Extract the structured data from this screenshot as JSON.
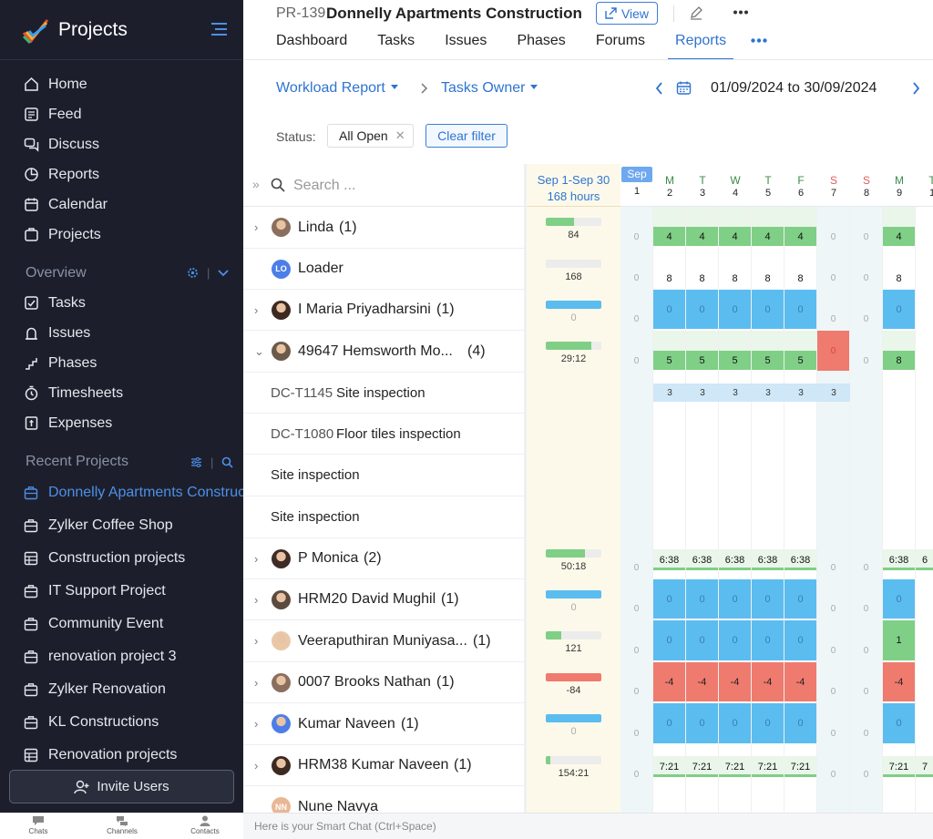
{
  "sidebar": {
    "app_title": "Projects",
    "nav": [
      {
        "label": "Home",
        "icon": "home-icon"
      },
      {
        "label": "Feed",
        "icon": "feed-icon"
      },
      {
        "label": "Discuss",
        "icon": "discuss-icon"
      },
      {
        "label": "Reports",
        "icon": "reports-icon"
      },
      {
        "label": "Calendar",
        "icon": "calendar-icon"
      },
      {
        "label": "Projects",
        "icon": "projects-icon"
      }
    ],
    "overview_label": "Overview",
    "overview": [
      {
        "label": "Tasks",
        "icon": "tasks-icon"
      },
      {
        "label": "Issues",
        "icon": "issues-icon"
      },
      {
        "label": "Phases",
        "icon": "phases-icon"
      },
      {
        "label": "Timesheets",
        "icon": "timesheets-icon"
      },
      {
        "label": "Expenses",
        "icon": "expenses-icon"
      }
    ],
    "recent_label": "Recent Projects",
    "recent": [
      {
        "label": "Donnelly Apartments Construction",
        "active": true
      },
      {
        "label": "Zylker Coffee Shop"
      },
      {
        "label": "Construction projects"
      },
      {
        "label": "IT Support Project"
      },
      {
        "label": "Community Event"
      },
      {
        "label": "renovation project 3"
      },
      {
        "label": "Zylker Renovation"
      },
      {
        "label": "KL Constructions"
      },
      {
        "label": "Renovation projects"
      }
    ],
    "invite_label": "Invite Users"
  },
  "bottom_bar": {
    "chats": "Chats",
    "channels": "Channels",
    "contacts": "Contacts",
    "smart_chat": "Here is your Smart Chat (Ctrl+Space)"
  },
  "header": {
    "project_code": "PR-139",
    "project_name": "Donnelly Apartments Construction",
    "view_label": "View",
    "tabs": [
      "Dashboard",
      "Tasks",
      "Issues",
      "Phases",
      "Forums",
      "Reports"
    ],
    "active_tab": "Reports"
  },
  "toolbar": {
    "report_type": "Workload Report",
    "group_by": "Tasks Owner",
    "date_range": "01/09/2024 to 30/09/2024",
    "status_label": "Status:",
    "status_value": "All Open",
    "clear_filter": "Clear filter"
  },
  "grid": {
    "search_placeholder": "Search ...",
    "summary_head_1": "Sep 1-Sep 30",
    "summary_head_2": "168 hours",
    "month_label": "Sep",
    "days": [
      {
        "d": "1",
        "w": ""
      },
      {
        "d": "2",
        "w": "M"
      },
      {
        "d": "3",
        "w": "T"
      },
      {
        "d": "4",
        "w": "W"
      },
      {
        "d": "5",
        "w": "T"
      },
      {
        "d": "6",
        "w": "F"
      },
      {
        "d": "7",
        "w": "S"
      },
      {
        "d": "8",
        "w": "S"
      },
      {
        "d": "9",
        "w": "M"
      },
      {
        "d": "1",
        "w": "T"
      }
    ],
    "rows": [
      {
        "name": "Linda",
        "count": "(1)",
        "expand": true,
        "summary": "84",
        "fill": 0.5,
        "color": "#7fcf86",
        "cells": [
          "0",
          "4",
          "4",
          "4",
          "4",
          "4",
          "0",
          "0",
          "4",
          ""
        ],
        "cell_bg": "#7fcf86",
        "wk_bg": "#eaf6ea"
      },
      {
        "name": "Loader",
        "initials": "LO",
        "count": "",
        "expand": false,
        "summary": "168",
        "fill": 0,
        "color": "#7fcf86",
        "cells": [
          "0",
          "8",
          "8",
          "8",
          "8",
          "8",
          "0",
          "0",
          "8",
          ""
        ],
        "cell_bg": "",
        "wk_bg": ""
      },
      {
        "name": "I Maria Priyadharsini",
        "count": "(1)",
        "expand": true,
        "summary": "0",
        "fill": 1,
        "color": "#5bbcf0",
        "cells": [
          "0",
          "0",
          "0",
          "0",
          "0",
          "0",
          "0",
          "0",
          "0",
          ""
        ],
        "cell_bg": "#5bbcf0",
        "wk_bg": ""
      },
      {
        "name": "49647 Hemsworth Mo...",
        "count": "(4)",
        "expand": true,
        "open": true,
        "summary": "29:12",
        "fill": 0.82,
        "color": "#7fcf86",
        "cells": [
          "0",
          "5",
          "5",
          "5",
          "5",
          "5",
          "0",
          "0",
          "8",
          ""
        ],
        "cell_bg": "#7fcf86",
        "wk_bg": "#eaf6ea"
      },
      {
        "task_code": "DC-T1145",
        "task": "Site inspection",
        "cells": [
          "",
          "3",
          "3",
          "3",
          "3",
          "3",
          "3",
          "",
          "",
          ""
        ]
      },
      {
        "task_code": "DC-T1080",
        "task": "Floor tiles inspection",
        "cells": [
          "",
          "",
          "",
          "",
          "",
          "",
          "",
          "",
          "",
          ""
        ]
      },
      {
        "task_code": "",
        "task": "Site inspection",
        "cells": [
          "",
          "",
          "",
          "",
          "",
          "",
          "",
          "",
          "",
          ""
        ]
      },
      {
        "task_code": "",
        "task": "Site inspection",
        "cells": [
          "",
          "",
          "",
          "",
          "",
          "",
          "",
          "",
          "",
          ""
        ]
      },
      {
        "name": "P Monica",
        "count": "(2)",
        "expand": true,
        "summary": "50:18",
        "fill": 0.7,
        "color": "#7fcf86",
        "cells": [
          "0",
          "6:38",
          "6:38",
          "6:38",
          "6:38",
          "6:38",
          "0",
          "0",
          "6:38",
          "6"
        ],
        "cell_bg": "#eaf6ea",
        "wk_bg": ""
      },
      {
        "name": "HRM20 David Mughil",
        "count": "(1)",
        "expand": true,
        "summary": "0",
        "fill": 1,
        "color": "#5bbcf0",
        "cells": [
          "0",
          "0",
          "0",
          "0",
          "0",
          "0",
          "0",
          "0",
          "0",
          ""
        ],
        "cell_bg": "#5bbcf0",
        "wk_bg": ""
      },
      {
        "name": "Veeraputhiran Muniyasa...",
        "count": "(1)",
        "expand": true,
        "summary": "121",
        "fill": 0.28,
        "color": "#7fcf86",
        "cells": [
          "0",
          "0",
          "0",
          "0",
          "0",
          "0",
          "0",
          "0",
          "1",
          ""
        ],
        "cell_bg": "#5bbcf0",
        "wk_bg": ""
      },
      {
        "name": "0007 Brooks Nathan",
        "count": "(1)",
        "expand": true,
        "summary": "-84",
        "fill": 1,
        "color": "#ef7a6e",
        "cells": [
          "0",
          "-4",
          "-4",
          "-4",
          "-4",
          "-4",
          "0",
          "0",
          "-4",
          ""
        ],
        "cell_bg": "#ef7a6e",
        "wk_bg": ""
      },
      {
        "name": "Kumar Naveen",
        "count": "(1)",
        "expand": true,
        "summary": "0",
        "fill": 1,
        "color": "#5bbcf0",
        "cells": [
          "0",
          "0",
          "0",
          "0",
          "0",
          "0",
          "0",
          "0",
          "0",
          ""
        ],
        "cell_bg": "#5bbcf0",
        "wk_bg": ""
      },
      {
        "name": "HRM38 Kumar Naveen",
        "count": "(1)",
        "expand": true,
        "summary": "154:21",
        "fill": 0.08,
        "color": "#7fcf86",
        "cells": [
          "0",
          "7:21",
          "7:21",
          "7:21",
          "7:21",
          "7:21",
          "0",
          "0",
          "7:21",
          "7"
        ],
        "cell_bg": "#eaf6ea",
        "wk_bg": ""
      },
      {
        "name": "Nune Navya",
        "initials": "NN",
        "count": "",
        "expand": false,
        "summary": "",
        "fill": 0,
        "color": "#7fcf86",
        "cells": [
          "",
          "",
          "",
          "",
          "",
          "",
          "",
          "",
          "",
          ""
        ]
      }
    ]
  }
}
